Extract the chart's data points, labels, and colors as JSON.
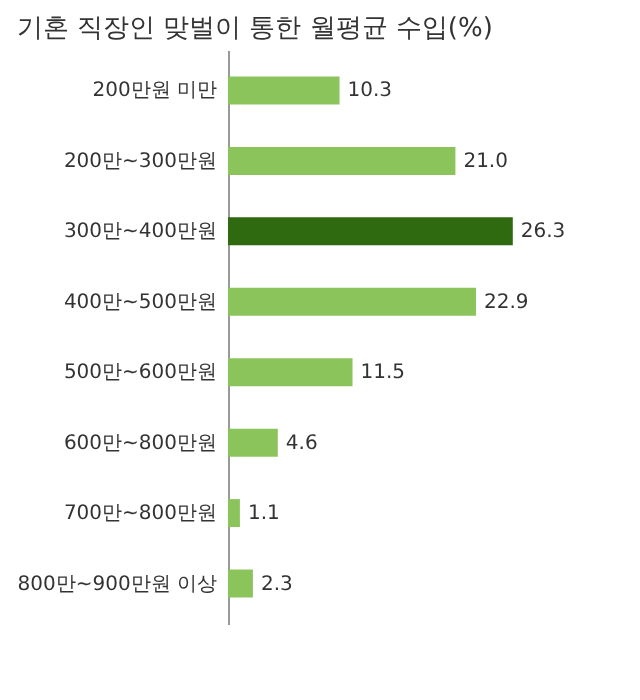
{
  "chart_data": {
    "type": "bar",
    "orientation": "horizontal",
    "title": "기혼 직장인 맞벌이 통한 월평균 수입(%)",
    "categories": [
      "200만원 미만",
      "200만~300만원",
      "300만~400만원",
      "400만~500만원",
      "500만~600만원",
      "600만~800만원",
      "700만~800만원",
      "800만~900만원 이상"
    ],
    "values": [
      10.3,
      21.0,
      26.3,
      22.9,
      11.5,
      4.6,
      1.1,
      2.3
    ],
    "colors": [
      "#8cc45c",
      "#8cc45c",
      "#2f6a10",
      "#8cc45c",
      "#8cc45c",
      "#8cc45c",
      "#8cc45c",
      "#8cc45c"
    ],
    "value_labels": [
      "10.3",
      "21.0",
      "26.3",
      "22.9",
      "11.5",
      "4.6",
      "1.1",
      "2.3"
    ],
    "grid": false,
    "legend": false
  }
}
